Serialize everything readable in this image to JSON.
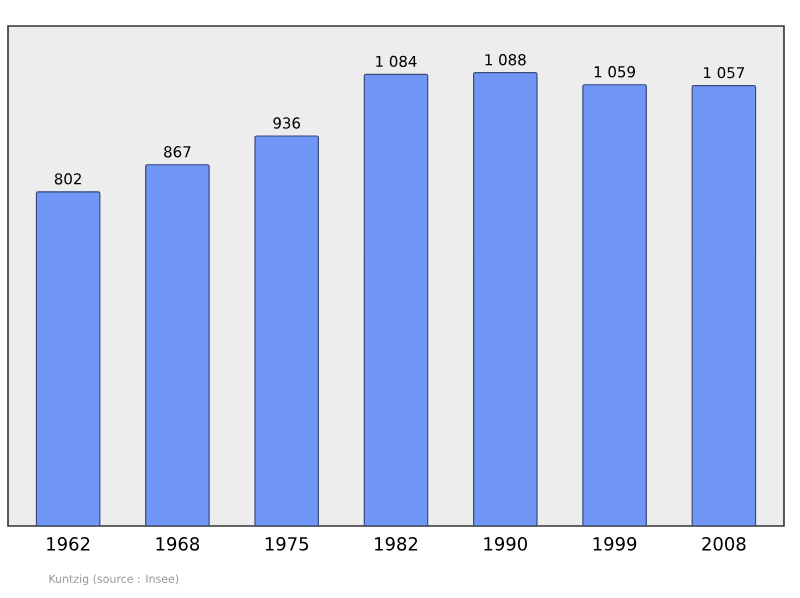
{
  "chart_data": {
    "type": "bar",
    "categories": [
      "1962",
      "1968",
      "1975",
      "1982",
      "1990",
      "1999",
      "2008"
    ],
    "values": [
      802,
      867,
      936,
      1084,
      1088,
      1059,
      1057
    ],
    "value_labels": [
      "802",
      "867",
      "936",
      "1 084",
      "1 088",
      "1 059",
      "1 057"
    ],
    "color": "#7096f6",
    "ylim": [
      0,
      1200
    ],
    "tick_labels": "x",
    "annotations": [
      "Kuntzig    (source : Insee)"
    ]
  }
}
